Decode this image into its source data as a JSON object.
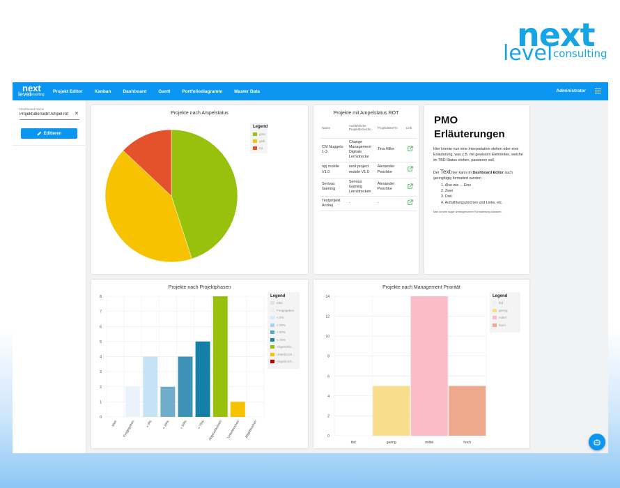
{
  "brand": {
    "next": "next",
    "level": "level",
    "consulting": "consulting"
  },
  "app_logo": {
    "next": "next",
    "level": "level",
    "consulting": "consulting"
  },
  "nav": [
    "Projekt Editor",
    "Kanban",
    "Dashboard",
    "Gantt",
    "Portfoliodiagramm",
    "Master Data"
  ],
  "user": "Administrator",
  "sidebar": {
    "field_label": "Dashboard Name",
    "field_value": "Projektübersicht Ampel rot",
    "edit_label": "Editieren"
  },
  "pie": {
    "title": "Projekte nach Ampelstatus",
    "legend_title": "Legend",
    "legend": [
      {
        "label": "grün",
        "color": "#97c10d"
      },
      {
        "label": "gelb",
        "color": "#f7c200"
      },
      {
        "label": "rot",
        "color": "#e4522b"
      }
    ]
  },
  "table_card": {
    "title": "Projekte mit Ampelstatus ROT",
    "headers": [
      "Name",
      "Ausführliche Projektbezeichn",
      "Projektleiter*in",
      "Link"
    ],
    "rows": [
      [
        "CM Nuggets 1-3",
        "Change Management Digitale Lernstrecke",
        "Tina Hiller"
      ],
      [
        "npj mobile V1.0",
        "next project mobile V1.0",
        "Alexander Peschke"
      ],
      [
        "Serious Gaming",
        "Serious Gaming Lernstrecken",
        "Alexander Peschke"
      ],
      [
        "Testprojekt Andrej",
        "-",
        "-"
      ]
    ]
  },
  "pmo": {
    "title_1": "PMO",
    "title_2": "Erläuterungen",
    "p1": "Hier könnte nun eine Interpretation stehen oder eine Erläuterung, was z.B. mit gewissen Elementen, welche im TBD Status stehen, passieren soll.",
    "p2_a": "Der ",
    "p2_b": "Text",
    "p2_c": " hier kann im ",
    "p2_d": "Dashboard Editor",
    "p2_e": " auch geringfügig formatiert werden",
    "list": [
      "Also wie ... Eins",
      "Zwei",
      "Drei",
      "Aufzählungszeichen und Links, etc."
    ],
    "note": "Man könnte sogar umfangreichere Formatierung zulassen."
  },
  "phases": {
    "title": "Projekte nach Projektphasen",
    "legend_title": "Legend",
    "legend": [
      {
        "label": "Idee",
        "color": "#e2e2e2"
      },
      {
        "label": "Freigegeben",
        "color": "#eeeeee"
      },
      {
        "label": "< 0%",
        "color": "#d6ebf8"
      },
      {
        "label": "< 25%",
        "color": "#a5d3ee"
      },
      {
        "label": "< 50%",
        "color": "#5ba8c9"
      },
      {
        "label": "< 75%",
        "color": "#217fa4"
      },
      {
        "label": "Abgeschlo...",
        "color": "#97c10d"
      },
      {
        "label": "Unterbroch...",
        "color": "#f7c200"
      },
      {
        "label": "Abgebroch...",
        "color": "#c00000"
      }
    ]
  },
  "priority": {
    "title": "Projekte nach Management Priorität",
    "legend_title": "Legend",
    "legend": [
      {
        "label": "tbd",
        "color": "#eeeeee"
      },
      {
        "label": "gering",
        "color": "#f6de8a"
      },
      {
        "label": "mittel",
        "color": "#fbbcc8"
      },
      {
        "label": "hoch",
        "color": "#eea98c"
      }
    ]
  },
  "chart_data": [
    {
      "type": "pie",
      "title": "Projekte nach Ampelstatus",
      "categories": [
        "grün",
        "gelb",
        "rot"
      ],
      "values": [
        45,
        42,
        13
      ],
      "colors": [
        "#97c10d",
        "#f7c200",
        "#e4522b"
      ],
      "legend": "top-right"
    },
    {
      "type": "bar",
      "title": "Projekte nach Projektphasen",
      "categories": [
        "Idee",
        "Freigegeben",
        "< 0%",
        "< 25%",
        "< 50%",
        "< 75%",
        "Abgeschlossen",
        "Unterbrochen",
        "Abgebrochen"
      ],
      "values": [
        0,
        2,
        4,
        2,
        4,
        5,
        8,
        1,
        0
      ],
      "colors": [
        "#e2e2e2",
        "#eaf3fb",
        "#c6e2f5",
        "#70adcb",
        "#3c93b6",
        "#137fa6",
        "#97c10d",
        "#f7c200",
        "#c00000"
      ],
      "yticks": [
        "0",
        "1",
        "2",
        "3",
        "4",
        "5",
        "6",
        "7",
        "8"
      ],
      "ylim": [
        0,
        8
      ],
      "grid": true,
      "legend": "right"
    },
    {
      "type": "bar",
      "title": "Projekte nach Management Priorität",
      "categories": [
        "tbd",
        "gering",
        "mittel",
        "hoch"
      ],
      "values": [
        0,
        5,
        14,
        5
      ],
      "colors": [
        "#eeeeee",
        "#f6de8a",
        "#fbbcc8",
        "#eea98c"
      ],
      "yticks": [
        "0",
        "2",
        "4",
        "6",
        "8",
        "10",
        "12",
        "14"
      ],
      "ylim": [
        0,
        14
      ],
      "grid": true,
      "legend": "right"
    }
  ]
}
